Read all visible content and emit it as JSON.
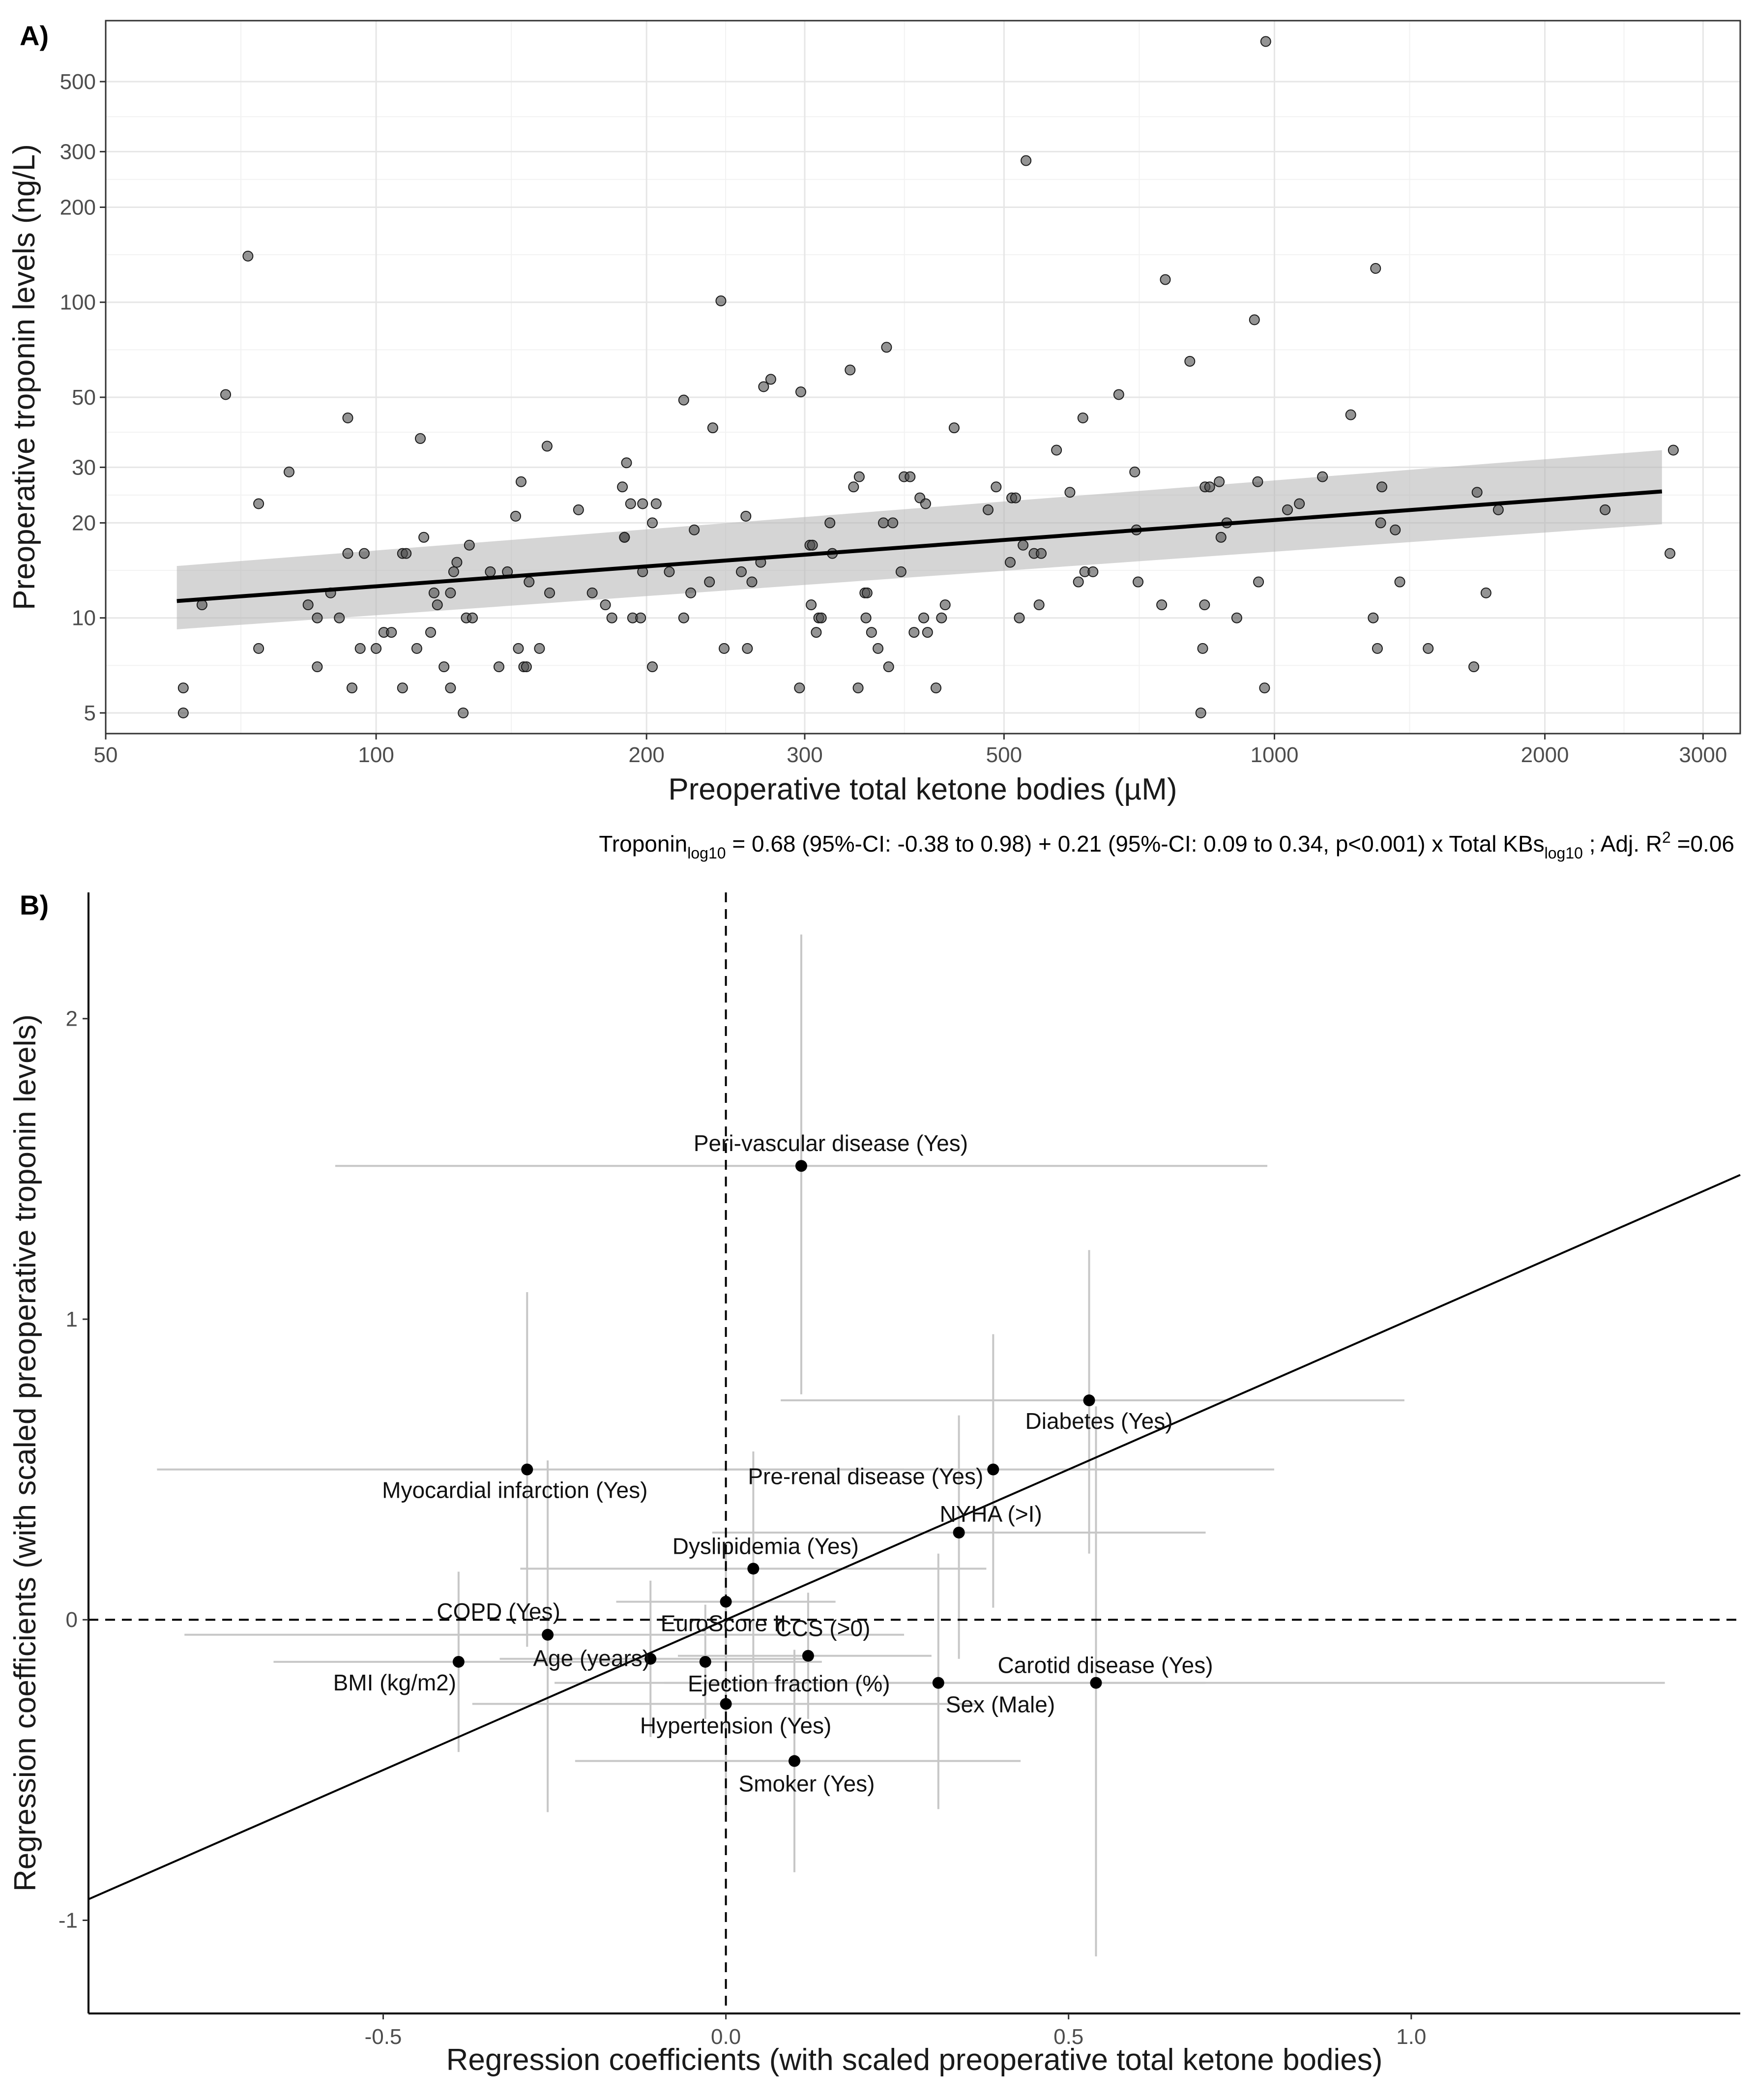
{
  "chart_data": [
    {
      "panel": "A)",
      "type": "scatter",
      "xscale": "log10",
      "yscale": "log10",
      "xlabel": "Preoperative total ketone bodies (µM)",
      "ylabel": "Preoperative troponin levels (ng/L)",
      "xlim": [
        50,
        3300
      ],
      "ylim": [
        4.3,
        780
      ],
      "xticks": [
        50,
        100,
        200,
        300,
        500,
        1000,
        2000,
        3000
      ],
      "yticks": [
        5,
        10,
        20,
        30,
        50,
        100,
        200,
        300,
        500
      ],
      "regression": {
        "intercept": 0.68,
        "slope": 0.21,
        "x_range": [
          60,
          2700
        ],
        "ci_low": [
          9.2,
          19.8
        ],
        "ci_high": [
          14.6,
          34.0
        ]
      },
      "equation": {
        "lhs": "Troponin",
        "lhs_sub": "log10",
        "mid": " = 0.68 (95%-CI: -0.38 to 0.98) + 0.21 (95%-CI: 0.09 to 0.34, p<0.001) x Total KBs",
        "mid_sub": "log10",
        "rhs": " ; Adj. R",
        "rhs_sup": "2",
        "rhs_tail": " =0.06"
      },
      "points": [
        [
          61,
          6
        ],
        [
          61,
          5
        ],
        [
          64,
          11
        ],
        [
          68,
          51
        ],
        [
          72,
          140
        ],
        [
          74,
          23
        ],
        [
          74,
          8
        ],
        [
          80,
          29
        ],
        [
          84,
          11
        ],
        [
          86,
          7
        ],
        [
          86,
          10
        ],
        [
          89,
          12
        ],
        [
          91,
          10
        ],
        [
          93,
          43
        ],
        [
          93,
          16
        ],
        [
          94,
          6
        ],
        [
          96,
          8
        ],
        [
          97,
          16
        ],
        [
          100,
          8
        ],
        [
          102,
          9
        ],
        [
          104,
          9
        ],
        [
          107,
          16
        ],
        [
          107,
          6
        ],
        [
          108,
          16
        ],
        [
          111,
          8
        ],
        [
          112,
          37
        ],
        [
          113,
          18
        ],
        [
          115,
          9
        ],
        [
          116,
          12
        ],
        [
          117,
          11
        ],
        [
          119,
          7
        ],
        [
          121,
          6
        ],
        [
          121,
          12
        ],
        [
          122,
          14
        ],
        [
          123,
          15
        ],
        [
          125,
          5
        ],
        [
          126,
          10
        ],
        [
          127,
          17
        ],
        [
          128,
          10
        ],
        [
          134,
          14
        ],
        [
          137,
          7
        ],
        [
          140,
          14
        ],
        [
          143,
          21
        ],
        [
          144,
          8
        ],
        [
          145,
          27
        ],
        [
          146,
          7
        ],
        [
          147,
          7
        ],
        [
          148,
          13
        ],
        [
          152,
          8
        ],
        [
          155,
          35
        ],
        [
          156,
          12
        ],
        [
          168,
          22
        ],
        [
          174,
          12
        ],
        [
          180,
          11
        ],
        [
          183,
          10
        ],
        [
          188,
          26
        ],
        [
          189,
          18
        ],
        [
          189,
          18
        ],
        [
          190,
          31
        ],
        [
          192,
          23
        ],
        [
          193,
          10
        ],
        [
          197,
          10
        ],
        [
          198,
          14
        ],
        [
          198,
          23
        ],
        [
          203,
          7
        ],
        [
          203,
          20
        ],
        [
          205,
          23
        ],
        [
          212,
          14
        ],
        [
          220,
          10
        ],
        [
          220,
          49
        ],
        [
          224,
          12
        ],
        [
          226,
          19
        ],
        [
          235,
          13
        ],
        [
          237,
          40
        ],
        [
          242,
          101
        ],
        [
          244,
          8
        ],
        [
          255,
          14
        ],
        [
          258,
          21
        ],
        [
          259,
          8
        ],
        [
          262,
          13
        ],
        [
          268,
          15
        ],
        [
          270,
          54
        ],
        [
          275,
          57
        ],
        [
          296,
          6
        ],
        [
          297,
          52
        ],
        [
          304,
          17
        ],
        [
          305,
          11
        ],
        [
          306,
          17
        ],
        [
          309,
          9
        ],
        [
          311,
          10
        ],
        [
          313,
          10
        ],
        [
          320,
          20
        ],
        [
          322,
          16
        ],
        [
          337,
          61
        ],
        [
          340,
          26
        ],
        [
          344,
          6
        ],
        [
          345,
          28
        ],
        [
          350,
          12
        ],
        [
          351,
          10
        ],
        [
          352,
          12
        ],
        [
          356,
          9
        ],
        [
          362,
          8
        ],
        [
          367,
          20
        ],
        [
          370,
          72
        ],
        [
          372,
          7
        ],
        [
          376,
          20
        ],
        [
          384,
          14
        ],
        [
          387,
          28
        ],
        [
          393,
          28
        ],
        [
          397,
          9
        ],
        [
          403,
          24
        ],
        [
          407,
          10
        ],
        [
          409,
          23
        ],
        [
          411,
          9
        ],
        [
          420,
          6
        ],
        [
          426,
          10
        ],
        [
          430,
          11
        ],
        [
          440,
          40
        ],
        [
          480,
          22
        ],
        [
          490,
          26
        ],
        [
          508,
          15
        ],
        [
          510,
          24
        ],
        [
          515,
          24
        ],
        [
          520,
          10
        ],
        [
          525,
          17
        ],
        [
          529,
          281
        ],
        [
          540,
          16
        ],
        [
          547,
          11
        ],
        [
          550,
          16
        ],
        [
          572,
          34
        ],
        [
          592,
          25
        ],
        [
          605,
          13
        ],
        [
          612,
          43
        ],
        [
          615,
          14
        ],
        [
          628,
          14
        ],
        [
          671,
          51
        ],
        [
          699,
          29
        ],
        [
          702,
          19
        ],
        [
          705,
          13
        ],
        [
          749,
          11
        ],
        [
          756,
          118
        ],
        [
          805,
          65
        ],
        [
          828,
          5
        ],
        [
          832,
          8
        ],
        [
          836,
          11
        ],
        [
          837,
          26
        ],
        [
          847,
          26
        ],
        [
          868,
          27
        ],
        [
          872,
          18
        ],
        [
          885,
          20
        ],
        [
          908,
          10
        ],
        [
          950,
          88
        ],
        [
          958,
          27
        ],
        [
          960,
          13
        ],
        [
          975,
          6
        ],
        [
          978,
          670
        ],
        [
          1034,
          22
        ],
        [
          1066,
          23
        ],
        [
          1131,
          28
        ],
        [
          1216,
          44
        ],
        [
          1288,
          10
        ],
        [
          1296,
          128
        ],
        [
          1302,
          8
        ],
        [
          1313,
          20
        ],
        [
          1317,
          26
        ],
        [
          1363,
          19
        ],
        [
          1379,
          13
        ],
        [
          1483,
          8
        ],
        [
          1667,
          7
        ],
        [
          1681,
          25
        ],
        [
          1720,
          12
        ],
        [
          1775,
          22
        ],
        [
          2334,
          22
        ],
        [
          2756,
          16
        ],
        [
          2780,
          34
        ]
      ]
    },
    {
      "panel": "B)",
      "type": "scatter",
      "xlabel": "Regression coefficients (with scaled preoperative total ketone bodies)",
      "ylabel": "Regression coefficients (with scaled preoperative troponin levels)",
      "xlim": [
        -0.93,
        1.48
      ],
      "ylim": [
        -1.31,
        2.42
      ],
      "xticks": [
        -0.5,
        0.0,
        0.5,
        1.0
      ],
      "yticks": [
        -1,
        0,
        1,
        2
      ],
      "reference_line": {
        "intercept": 0.0,
        "slope": 1.0
      },
      "points": [
        {
          "name": "Peri-vascular disease (Yes)",
          "x": 0.11,
          "y": 1.51,
          "xlo": -0.57,
          "xhi": 0.79,
          "ylo": 0.75,
          "yhi": 2.28
        },
        {
          "name": "Diabetes (Yes)",
          "x": 0.53,
          "y": 0.73,
          "xlo": 0.08,
          "xhi": 0.99,
          "ylo": 0.22,
          "yhi": 1.23
        },
        {
          "name": "Myocardial infarction (Yes)",
          "x": -0.29,
          "y": 0.5,
          "xlo": -0.83,
          "xhi": 0.26,
          "ylo": -0.09,
          "yhi": 1.09
        },
        {
          "name": "Pre-renal disease (Yes)",
          "x": 0.39,
          "y": 0.5,
          "xlo": -0.01,
          "xhi": 0.8,
          "ylo": 0.04,
          "yhi": 0.95
        },
        {
          "name": "NYHA (>I)",
          "x": 0.34,
          "y": 0.29,
          "xlo": -0.02,
          "xhi": 0.7,
          "ylo": -0.13,
          "yhi": 0.68
        },
        {
          "name": "Dyslipidemia (Yes)",
          "x": 0.04,
          "y": 0.17,
          "xlo": -0.3,
          "xhi": 0.38,
          "ylo": -0.22,
          "yhi": 0.56
        },
        {
          "name": "COPD (Yes)",
          "x": -0.26,
          "y": -0.05,
          "xlo": -0.79,
          "xhi": 0.26,
          "ylo": -0.64,
          "yhi": 0.53
        },
        {
          "name": "EuroScore II",
          "x": 0.0,
          "y": 0.06,
          "xlo": -0.16,
          "xhi": 0.16,
          "ylo": -0.1,
          "yhi": 0.22
        },
        {
          "name": "CCS (>0)",
          "x": 0.12,
          "y": -0.12,
          "xlo": -0.07,
          "xhi": 0.3,
          "ylo": -0.33,
          "yhi": 0.09
        },
        {
          "name": "BMI (kg/m2)",
          "x": -0.39,
          "y": -0.14,
          "xlo": -0.66,
          "xhi": -0.13,
          "ylo": -0.44,
          "yhi": 0.16
        },
        {
          "name": "Age (years)",
          "x": -0.11,
          "y": -0.13,
          "xlo": -0.33,
          "xhi": 0.12,
          "ylo": -0.39,
          "yhi": 0.13
        },
        {
          "name": "Ejection fraction (%)",
          "x": -0.03,
          "y": -0.14,
          "xlo": -0.2,
          "xhi": 0.14,
          "ylo": -0.33,
          "yhi": 0.05
        },
        {
          "name": "Sex (Male)",
          "x": 0.31,
          "y": -0.21,
          "xlo": -0.09,
          "xhi": 0.7,
          "ylo": -0.63,
          "yhi": 0.22
        },
        {
          "name": "Carotid disease (Yes)",
          "x": 0.54,
          "y": -0.21,
          "xlo": -0.25,
          "xhi": 1.37,
          "ylo": -1.12,
          "yhi": 0.71
        },
        {
          "name": "Hypertension (Yes)",
          "x": 0.0,
          "y": -0.28,
          "xlo": -0.37,
          "xhi": 0.37,
          "ylo": -0.67,
          "yhi": 0.11
        },
        {
          "name": "Smoker (Yes)",
          "x": 0.1,
          "y": -0.47,
          "xlo": -0.22,
          "xhi": 0.43,
          "ylo": -0.84,
          "yhi": -0.1
        }
      ]
    }
  ]
}
